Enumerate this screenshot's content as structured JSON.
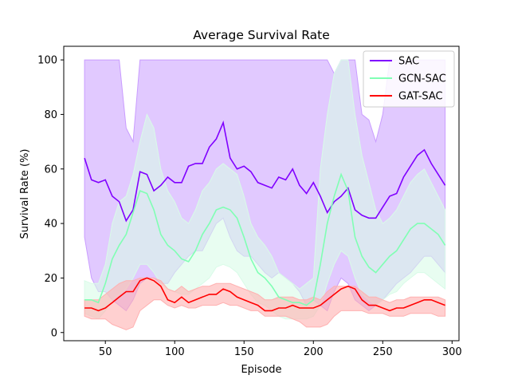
{
  "chart_data": {
    "type": "line",
    "title": "Average Survival Rate",
    "xlabel": "Episode",
    "ylabel": "Survival Rate (%)",
    "xlim": [
      20,
      305
    ],
    "ylim": [
      -3,
      105
    ],
    "xticks": [
      50,
      100,
      150,
      200,
      250,
      300
    ],
    "yticks": [
      0,
      20,
      40,
      60,
      80,
      100
    ],
    "grid": false,
    "legend_position": "top-right",
    "x": [
      35,
      40,
      45,
      50,
      55,
      60,
      65,
      70,
      75,
      80,
      85,
      90,
      95,
      100,
      105,
      110,
      115,
      120,
      125,
      130,
      135,
      140,
      145,
      150,
      155,
      160,
      165,
      170,
      175,
      180,
      185,
      190,
      195,
      200,
      205,
      210,
      215,
      220,
      225,
      230,
      235,
      240,
      245,
      250,
      255,
      260,
      265,
      270,
      275,
      280,
      285,
      290,
      295
    ],
    "series": [
      {
        "name": "SAC",
        "color": "#8000ff",
        "fill": "#c99cff",
        "values": [
          64,
          56,
          55,
          56,
          50,
          48,
          41,
          45,
          59,
          58,
          52,
          54,
          57,
          55,
          55,
          61,
          62,
          62,
          68,
          71,
          77,
          64,
          60,
          61,
          59,
          55,
          54,
          53,
          57,
          56,
          60,
          54,
          51,
          55,
          50,
          44,
          48,
          50,
          53,
          45,
          43,
          42,
          42,
          46,
          50,
          51,
          57,
          61,
          65,
          67,
          62,
          58,
          54
        ],
        "upper": [
          100,
          100,
          100,
          100,
          100,
          100,
          75,
          70,
          100,
          100,
          100,
          100,
          100,
          100,
          100,
          100,
          100,
          100,
          100,
          100,
          100,
          100,
          100,
          100,
          100,
          100,
          100,
          100,
          100,
          100,
          100,
          100,
          100,
          100,
          100,
          100,
          95,
          100,
          100,
          100,
          80,
          78,
          70,
          80,
          100,
          100,
          100,
          100,
          100,
          100,
          100,
          100,
          100
        ],
        "lower": [
          35,
          20,
          15,
          15,
          12,
          10,
          8,
          12,
          18,
          20,
          20,
          18,
          18,
          22,
          25,
          28,
          30,
          30,
          35,
          40,
          42,
          35,
          30,
          28,
          28,
          25,
          22,
          20,
          22,
          20,
          18,
          15,
          10,
          12,
          10,
          8,
          15,
          20,
          18,
          12,
          10,
          8,
          10,
          12,
          15,
          18,
          20,
          22,
          25,
          28,
          28,
          25,
          22
        ]
      },
      {
        "name": "GCN-SAC",
        "color": "#80ffb4",
        "fill": "#d9fbe8",
        "values": [
          12,
          12,
          11,
          18,
          27,
          32,
          36,
          44,
          52,
          51,
          45,
          36,
          32,
          30,
          27,
          26,
          30,
          36,
          40,
          45,
          46,
          45,
          42,
          35,
          27,
          22,
          20,
          17,
          13,
          12,
          11,
          11,
          10,
          12,
          25,
          40,
          50,
          58,
          52,
          35,
          28,
          24,
          22,
          25,
          28,
          30,
          34,
          38,
          40,
          40,
          38,
          36,
          32
        ],
        "upper": [
          19,
          18,
          18,
          25,
          40,
          48,
          50,
          58,
          70,
          80,
          75,
          60,
          52,
          48,
          42,
          40,
          45,
          52,
          55,
          60,
          62,
          60,
          58,
          50,
          40,
          35,
          32,
          28,
          22,
          20,
          18,
          16,
          18,
          20,
          60,
          80,
          95,
          100,
          100,
          80,
          65,
          55,
          45,
          40,
          42,
          45,
          50,
          55,
          58,
          60,
          55,
          50,
          45
        ],
        "lower": [
          7,
          6,
          5,
          8,
          12,
          14,
          16,
          20,
          25,
          25,
          22,
          18,
          16,
          15,
          14,
          14,
          16,
          18,
          20,
          24,
          25,
          24,
          22,
          18,
          14,
          11,
          10,
          8,
          6,
          5,
          5,
          5,
          5,
          6,
          10,
          18,
          25,
          30,
          28,
          20,
          14,
          12,
          10,
          12,
          14,
          15,
          18,
          20,
          22,
          22,
          20,
          18,
          16
        ]
      },
      {
        "name": "GAT-SAC",
        "color": "#ff0000",
        "fill": "#ffb0b0",
        "values": [
          9,
          9,
          8,
          9,
          11,
          13,
          15,
          15,
          19,
          20,
          19,
          17,
          12,
          11,
          13,
          11,
          12,
          13,
          14,
          14,
          16,
          15,
          13,
          12,
          11,
          10,
          8,
          8,
          9,
          9,
          10,
          9,
          9,
          9,
          10,
          12,
          14,
          16,
          17,
          16,
          12,
          10,
          10,
          9,
          8,
          9,
          9,
          10,
          11,
          12,
          12,
          11,
          10
        ],
        "upper": [
          12,
          12,
          12,
          14,
          16,
          18,
          19,
          19,
          20,
          20,
          20,
          19,
          16,
          15,
          17,
          15,
          16,
          17,
          17,
          18,
          18,
          18,
          17,
          16,
          15,
          14,
          12,
          12,
          13,
          13,
          13,
          12,
          12,
          13,
          12,
          15,
          17,
          17,
          17,
          17,
          15,
          13,
          13,
          12,
          11,
          12,
          12,
          13,
          13,
          13,
          13,
          13,
          12
        ],
        "lower": [
          6,
          5,
          5,
          5,
          3,
          2,
          1,
          2,
          8,
          10,
          12,
          12,
          10,
          9,
          10,
          9,
          9,
          10,
          10,
          10,
          11,
          10,
          10,
          9,
          8,
          8,
          6,
          6,
          6,
          6,
          5,
          4,
          2,
          2,
          2,
          3,
          6,
          8,
          8,
          8,
          8,
          7,
          7,
          7,
          6,
          6,
          6,
          7,
          7,
          7,
          7,
          6,
          6
        ]
      }
    ]
  }
}
